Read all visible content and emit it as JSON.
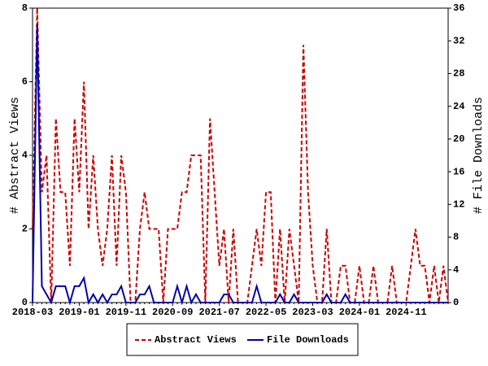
{
  "chart_data": {
    "type": "line",
    "categories": [
      "2018-03",
      null,
      null,
      null,
      null,
      null,
      null,
      null,
      null,
      null,
      "2019-01",
      null,
      null,
      null,
      null,
      null,
      null,
      null,
      null,
      null,
      "2019-11",
      null,
      null,
      null,
      null,
      null,
      null,
      null,
      null,
      null,
      "2020-09",
      null,
      null,
      null,
      null,
      null,
      null,
      null,
      null,
      null,
      "2021-07",
      null,
      null,
      null,
      null,
      null,
      null,
      null,
      null,
      null,
      "2022-05",
      null,
      null,
      null,
      null,
      null,
      null,
      null,
      null,
      null,
      "2023-03",
      null,
      null,
      null,
      null,
      null,
      null,
      null,
      null,
      null,
      "2024-01",
      null,
      null,
      null,
      null,
      null,
      null,
      null,
      null,
      null,
      "2024-11",
      null,
      null,
      null,
      null,
      null,
      null,
      null,
      null,
      null
    ],
    "y_label": "# Abstract Views",
    "y2_label": "# File Downloads",
    "ylim": [
      0,
      8
    ],
    "yticks": [
      0,
      2,
      4,
      6,
      8
    ],
    "y2lim": [
      0,
      36
    ],
    "y2ticks": [
      0,
      4,
      8,
      12,
      16,
      20,
      24,
      28,
      32,
      36
    ],
    "legend": "bottom",
    "series": [
      {
        "name": "Abstract Views",
        "color": "#cc0000",
        "dashed": true,
        "axis": "y",
        "values": [
          2,
          8,
          3,
          4,
          0,
          5,
          3,
          3,
          1,
          5,
          3,
          6,
          2,
          4,
          2,
          1,
          2,
          4,
          1,
          4,
          3,
          0,
          0,
          2,
          3,
          2,
          2,
          2,
          0,
          2,
          2,
          2,
          3,
          3,
          4,
          4,
          4,
          0,
          5,
          3,
          1,
          2,
          0,
          2,
          0,
          0,
          0,
          1,
          2,
          1,
          3,
          3,
          0,
          2,
          0,
          2,
          1,
          0,
          7,
          3,
          1,
          0,
          0,
          2,
          0,
          0,
          1,
          1,
          0,
          0,
          1,
          0,
          0,
          1,
          0,
          0,
          0,
          1,
          0,
          0,
          0,
          1,
          2,
          1,
          1,
          0,
          1,
          0,
          1,
          0
        ]
      },
      {
        "name": "File Downloads",
        "color": "#0000aa",
        "dashed": false,
        "axis": "y2",
        "values": [
          0,
          34,
          2,
          1,
          0,
          2,
          2,
          2,
          0,
          2,
          2,
          3,
          0,
          1,
          0,
          1,
          0,
          1,
          1,
          2,
          0,
          0,
          0,
          1,
          1,
          2,
          0,
          0,
          0,
          0,
          0,
          2,
          0,
          2,
          0,
          1,
          0,
          0,
          0,
          0,
          0,
          1,
          1,
          0,
          0,
          0,
          0,
          0,
          2,
          0,
          0,
          0,
          0,
          1,
          0,
          0,
          1,
          0,
          0,
          0,
          0,
          0,
          0,
          1,
          0,
          0,
          0,
          1,
          0,
          0,
          0,
          0,
          0,
          0,
          0,
          0,
          0,
          0,
          0,
          0,
          0,
          0,
          0,
          0,
          0,
          0,
          0,
          0,
          0,
          0
        ]
      }
    ]
  }
}
